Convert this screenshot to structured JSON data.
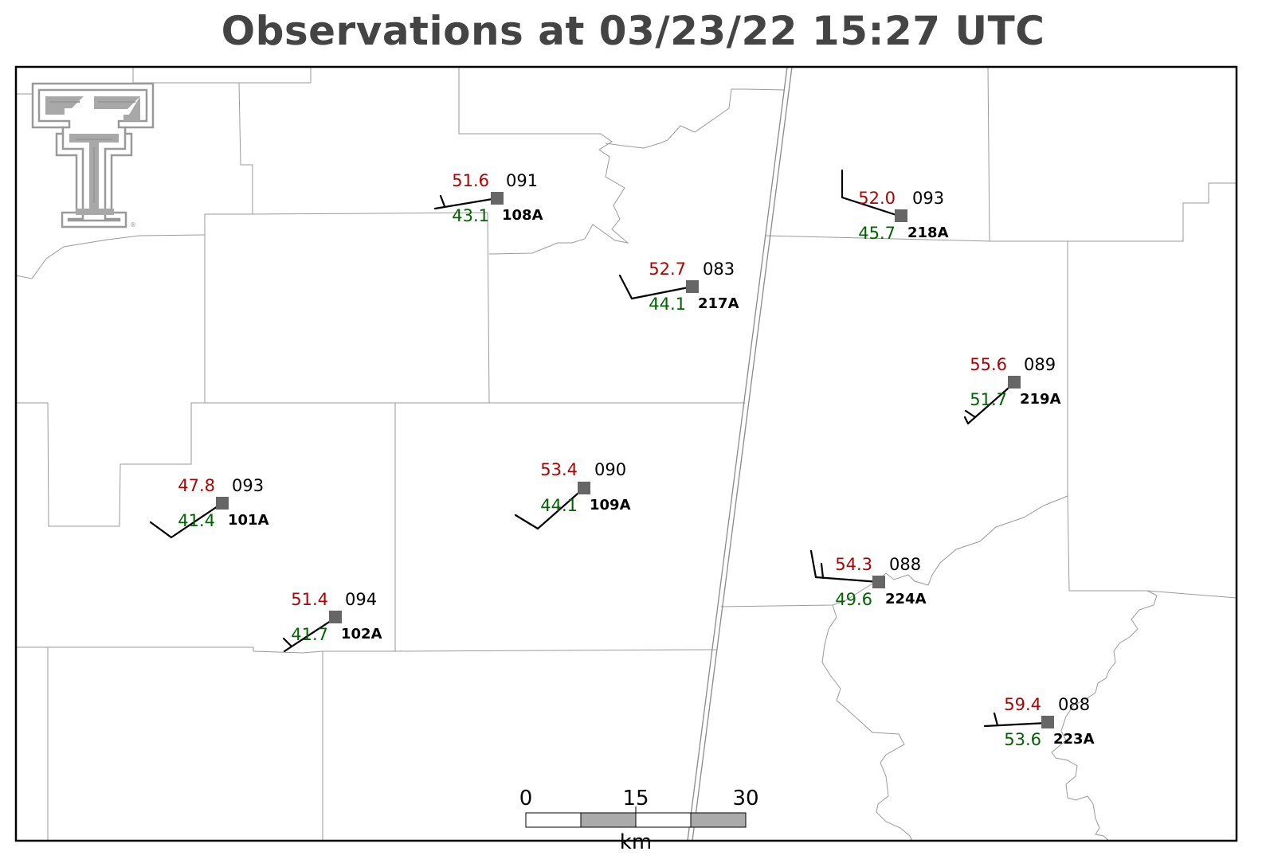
{
  "title": "Observations at 03/23/22 15:27 UTC",
  "colors": {
    "temperature": "#b00000",
    "dewpoint": "#006400",
    "station_marker": "#666666",
    "title": "#444444",
    "logo": "#999999"
  },
  "logo": {
    "name": "texas-tech-double-t-logo",
    "mark": "®"
  },
  "scale_bar": {
    "units": "km",
    "ticks": [
      "0",
      "15",
      "30"
    ]
  },
  "stations": [
    {
      "id": "108A",
      "temperature": "51.6",
      "dewpoint": "43.1",
      "wind_dir": "091"
    },
    {
      "id": "218A",
      "temperature": "52.0",
      "dewpoint": "45.7",
      "wind_dir": "093"
    },
    {
      "id": "217A",
      "temperature": "52.7",
      "dewpoint": "44.1",
      "wind_dir": "083"
    },
    {
      "id": "219A",
      "temperature": "55.6",
      "dewpoint": "51.7",
      "wind_dir": "089"
    },
    {
      "id": "109A",
      "temperature": "53.4",
      "dewpoint": "44.1",
      "wind_dir": "090"
    },
    {
      "id": "101A",
      "temperature": "47.8",
      "dewpoint": "41.4",
      "wind_dir": "093"
    },
    {
      "id": "224A",
      "temperature": "54.3",
      "dewpoint": "49.6",
      "wind_dir": "088"
    },
    {
      "id": "102A",
      "temperature": "51.4",
      "dewpoint": "41.7",
      "wind_dir": "094"
    },
    {
      "id": "223A",
      "temperature": "59.4",
      "dewpoint": "53.6",
      "wind_dir": "088"
    }
  ]
}
